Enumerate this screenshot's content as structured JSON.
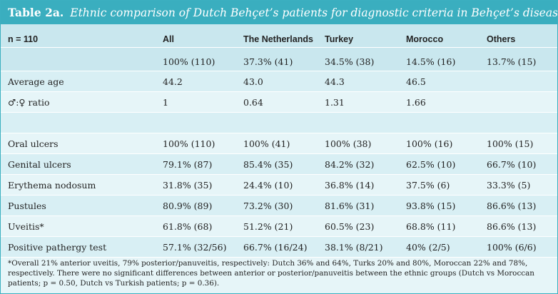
{
  "caption": {
    "label": "Table 2a.",
    "title": "Ethnic comparison of Dutch Behçet’s patients for diagnostic criteria in Behçet’s disease"
  },
  "header": {
    "n_label": "n = 110",
    "columns": [
      "All",
      "The Netherlands",
      "Turkey",
      "Morocco",
      "Others"
    ],
    "percents": [
      "100% (110)",
      "37.3% (41)",
      "34.5% (38)",
      "14.5% (16)",
      "13.7% (15)"
    ]
  },
  "demographics": [
    {
      "label": "Average age",
      "values": [
        "44.2",
        "43.0",
        "44.3",
        "46.5",
        ""
      ]
    },
    {
      "label": "♂:♀ ratio",
      "values": [
        "1",
        "0.64",
        "1.31",
        "1.66",
        ""
      ]
    }
  ],
  "criteria": [
    {
      "label": "Oral ulcers",
      "values": [
        "100% (110)",
        "100% (41)",
        "100% (38)",
        "100% (16)",
        "100% (15)"
      ]
    },
    {
      "label": "Genital ulcers",
      "values": [
        "79.1% (87)",
        "85.4% (35)",
        "84.2% (32)",
        "62.5% (10)",
        "66.7% (10)"
      ]
    },
    {
      "label": "Erythema nodosum",
      "values": [
        "31.8% (35)",
        "24.4% (10)",
        "36.8% (14)",
        "37.5% (6)",
        "33.3% (5)"
      ]
    },
    {
      "label": "Pustules",
      "values": [
        "80.9% (89)",
        "73.2% (30)",
        "81.6% (31)",
        "93.8% (15)",
        "86.6% (13)"
      ]
    },
    {
      "label": "Uveitis*",
      "values": [
        "61.8% (68)",
        "51.2% (21)",
        "60.5% (23)",
        "68.8% (11)",
        "86.6% (13)"
      ]
    },
    {
      "label": "Positive pathergy test",
      "values": [
        "57.1% (32/56)",
        "66.7% (16/24)",
        "38.1% (8/21)",
        "40% (2/5)",
        "100% (6/6)"
      ]
    }
  ],
  "footnote": "*Overall 21% anterior uveitis, 79% posterior/panuveitis, respectively: Dutch 36% and 64%, Turks 20% and 80%, Moroccan 22% and 78%, respectively. There were no significant differences between anterior or posterior/panuveitis between the ethnic groups (Dutch vs Moroccan patients; p = 0.50, Dutch vs Turkish patients; p = 0.36)."
}
